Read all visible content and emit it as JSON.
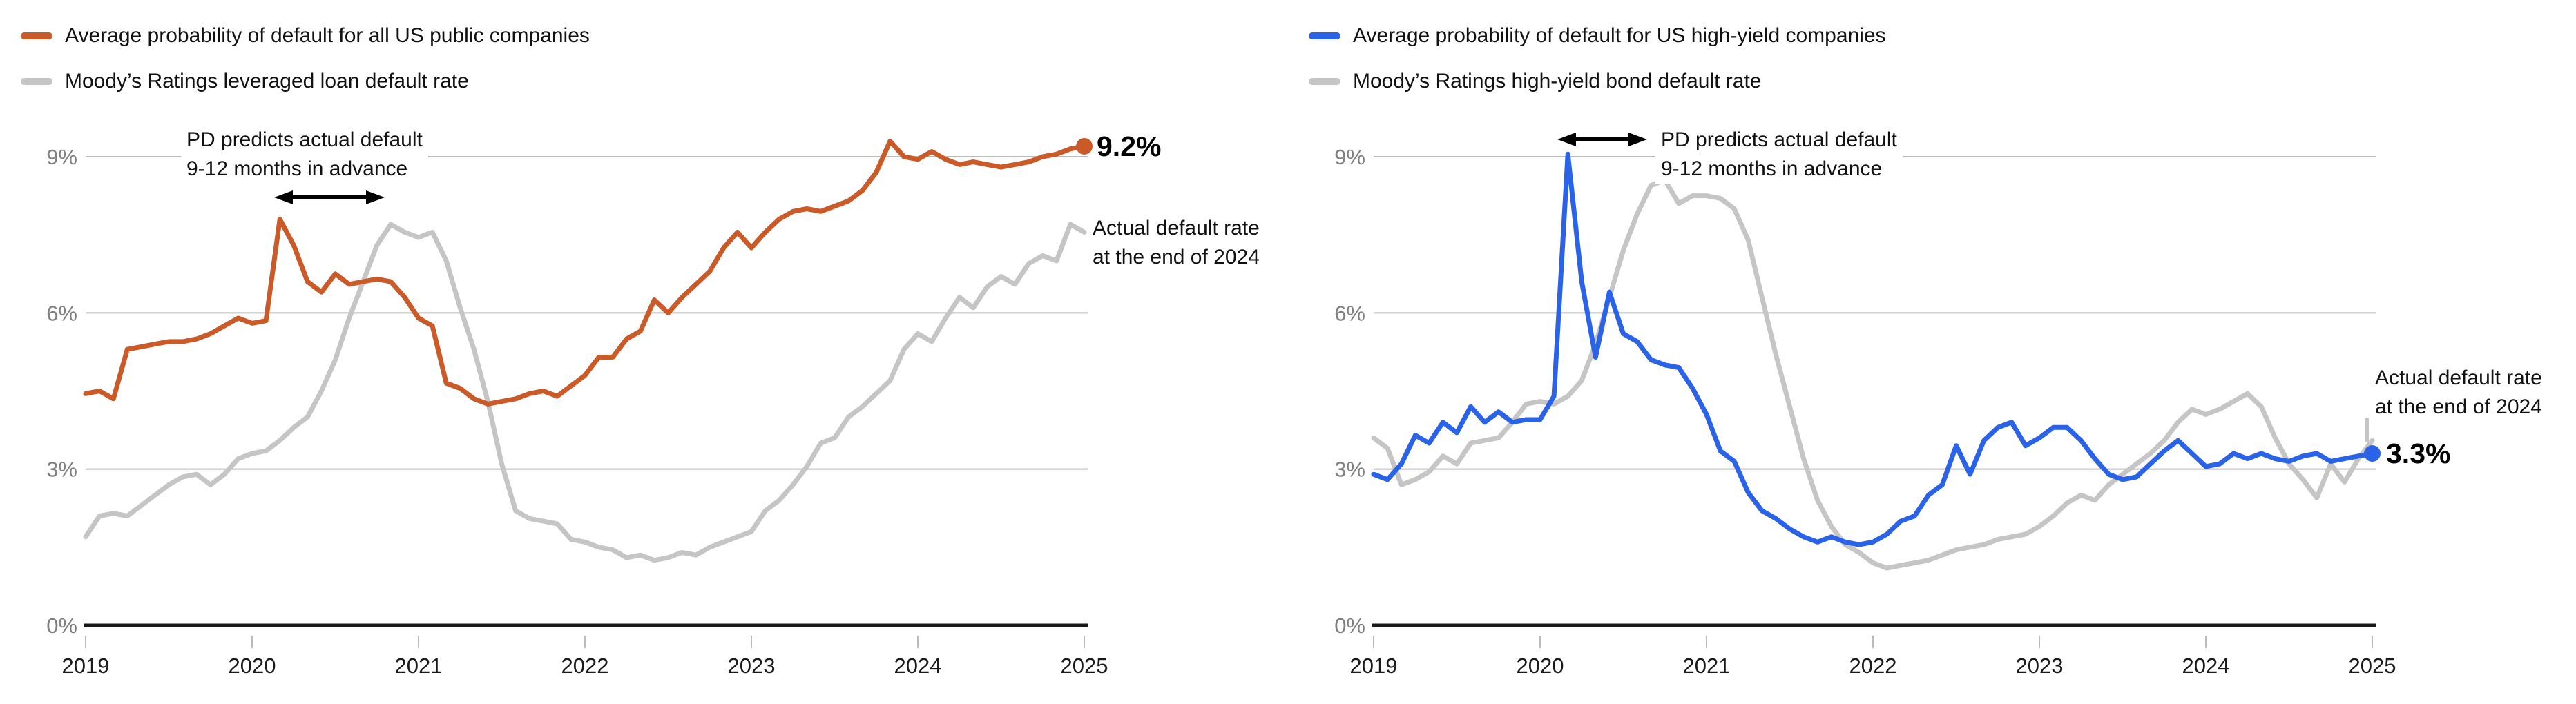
{
  "colors": {
    "pd_public_orange": "#CA5A28",
    "pd_highyield_blue": "#2A62E8",
    "actual_rate_gray": "#C5C5C5",
    "gridline": "#BBBBBB",
    "baseline": "#1A1A1A",
    "y_axis_label": "#7F7F7F",
    "x_axis_label": "#1A1A1A",
    "annotation_text": "#111111",
    "arrow_black": "#000000",
    "background": "#FFFFFF"
  },
  "chart_data": [
    {
      "id": "us-public-companies",
      "type": "line",
      "x_start_year": 2019,
      "x_interval": "monthly",
      "x_end_year": 2025,
      "x_tick_labels": [
        "2019",
        "2020",
        "2021",
        "2022",
        "2023",
        "2024",
        "2025"
      ],
      "y_tick_labels": [
        "0%",
        "3%",
        "6%",
        "9%"
      ],
      "y_tick_values": [
        0,
        3,
        6,
        9
      ],
      "ylim": [
        0,
        9.6
      ],
      "grid": "horizontal-only",
      "legend_position": "top-left",
      "series": [
        {
          "name": "Average probability of default for all US public companies",
          "color": "#CA5A28",
          "end_dot": true,
          "end_label": "9.2%",
          "values": [
            4.45,
            4.5,
            4.35,
            5.3,
            5.35,
            5.4,
            5.45,
            5.45,
            5.5,
            5.6,
            5.75,
            5.9,
            5.8,
            5.85,
            7.8,
            7.3,
            6.6,
            6.4,
            6.75,
            6.55,
            6.6,
            6.65,
            6.6,
            6.3,
            5.9,
            5.75,
            4.65,
            4.55,
            4.35,
            4.25,
            4.3,
            4.35,
            4.45,
            4.5,
            4.4,
            4.6,
            4.8,
            5.15,
            5.15,
            5.5,
            5.65,
            6.25,
            6.0,
            6.3,
            6.55,
            6.8,
            7.25,
            7.55,
            7.25,
            7.55,
            7.8,
            7.95,
            8.0,
            7.95,
            8.05,
            8.15,
            8.35,
            8.7,
            9.3,
            9.0,
            8.95,
            9.1,
            8.95,
            8.85,
            8.9,
            8.85,
            8.8,
            8.85,
            8.9,
            9.0,
            9.05,
            9.15,
            9.2
          ]
        },
        {
          "name": "Moody’s Ratings leveraged loan default rate",
          "color": "#C5C5C5",
          "end_dot": false,
          "values": [
            1.7,
            2.1,
            2.15,
            2.1,
            2.3,
            2.5,
            2.7,
            2.85,
            2.9,
            2.7,
            2.9,
            3.2,
            3.3,
            3.35,
            3.55,
            3.8,
            4.0,
            4.5,
            5.1,
            5.9,
            6.6,
            7.3,
            7.7,
            7.55,
            7.45,
            7.55,
            7.0,
            6.1,
            5.3,
            4.3,
            3.1,
            2.2,
            2.05,
            2.0,
            1.95,
            1.65,
            1.6,
            1.5,
            1.45,
            1.3,
            1.35,
            1.25,
            1.3,
            1.4,
            1.35,
            1.5,
            1.6,
            1.7,
            1.8,
            2.2,
            2.4,
            2.7,
            3.05,
            3.5,
            3.6,
            4.0,
            4.2,
            4.45,
            4.7,
            5.3,
            5.6,
            5.45,
            5.9,
            6.3,
            6.1,
            6.5,
            6.7,
            6.55,
            6.95,
            7.1,
            7.0,
            7.7,
            7.55
          ]
        }
      ],
      "annotations": {
        "lead": {
          "line1": "PD predicts actual default",
          "line2": "9-12 months in advance"
        },
        "end": {
          "line1": "Actual default rate",
          "line2": "at the end of 2024"
        },
        "end_value": "9.2%"
      }
    },
    {
      "id": "us-high-yield-companies",
      "type": "line",
      "x_start_year": 2019,
      "x_interval": "monthly",
      "x_end_year": 2025,
      "x_tick_labels": [
        "2019",
        "2020",
        "2021",
        "2022",
        "2023",
        "2024",
        "2025"
      ],
      "y_tick_labels": [
        "0%",
        "3%",
        "6%",
        "9%"
      ],
      "y_tick_values": [
        0,
        3,
        6,
        9
      ],
      "ylim": [
        0,
        9.6
      ],
      "grid": "horizontal-only",
      "legend_position": "top-left",
      "series": [
        {
          "name": "Average probability of default for US high-yield companies",
          "color": "#2A62E8",
          "end_dot": true,
          "end_label": "3.3%",
          "values": [
            2.9,
            2.8,
            3.1,
            3.65,
            3.5,
            3.9,
            3.7,
            4.2,
            3.9,
            4.1,
            3.9,
            3.95,
            3.95,
            4.4,
            9.05,
            6.6,
            5.15,
            6.4,
            5.6,
            5.45,
            5.1,
            5.0,
            4.95,
            4.55,
            4.05,
            3.35,
            3.15,
            2.55,
            2.2,
            2.05,
            1.85,
            1.7,
            1.6,
            1.7,
            1.6,
            1.55,
            1.6,
            1.75,
            2.0,
            2.1,
            2.5,
            2.7,
            3.45,
            2.9,
            3.55,
            3.8,
            3.9,
            3.45,
            3.6,
            3.8,
            3.8,
            3.55,
            3.2,
            2.9,
            2.8,
            2.85,
            3.1,
            3.35,
            3.55,
            3.3,
            3.05,
            3.1,
            3.3,
            3.2,
            3.3,
            3.2,
            3.15,
            3.25,
            3.3,
            3.15,
            3.2,
            3.25,
            3.3
          ]
        },
        {
          "name": "Moody’s Ratings high-yield bond default rate",
          "color": "#C5C5C5",
          "end_dot": false,
          "values": [
            3.6,
            3.4,
            2.7,
            2.8,
            2.95,
            3.25,
            3.1,
            3.5,
            3.55,
            3.6,
            3.9,
            4.25,
            4.3,
            4.25,
            4.4,
            4.7,
            5.4,
            6.3,
            7.2,
            7.9,
            8.45,
            8.55,
            8.1,
            8.25,
            8.25,
            8.2,
            8.0,
            7.4,
            6.3,
            5.2,
            4.2,
            3.2,
            2.4,
            1.9,
            1.55,
            1.4,
            1.2,
            1.1,
            1.15,
            1.2,
            1.25,
            1.35,
            1.45,
            1.5,
            1.55,
            1.65,
            1.7,
            1.75,
            1.9,
            2.1,
            2.35,
            2.5,
            2.4,
            2.7,
            2.9,
            3.1,
            3.3,
            3.55,
            3.9,
            4.15,
            4.05,
            4.15,
            4.3,
            4.45,
            4.2,
            3.6,
            3.1,
            2.8,
            2.45,
            3.1,
            2.75,
            3.2,
            3.55
          ]
        }
      ],
      "annotations": {
        "lead": {
          "line1": "PD predicts actual default",
          "line2": "9-12 months in advance"
        },
        "end": {
          "line1": "Actual default rate",
          "line2": "at the end of 2024"
        },
        "end_value": "3.3%"
      }
    }
  ]
}
